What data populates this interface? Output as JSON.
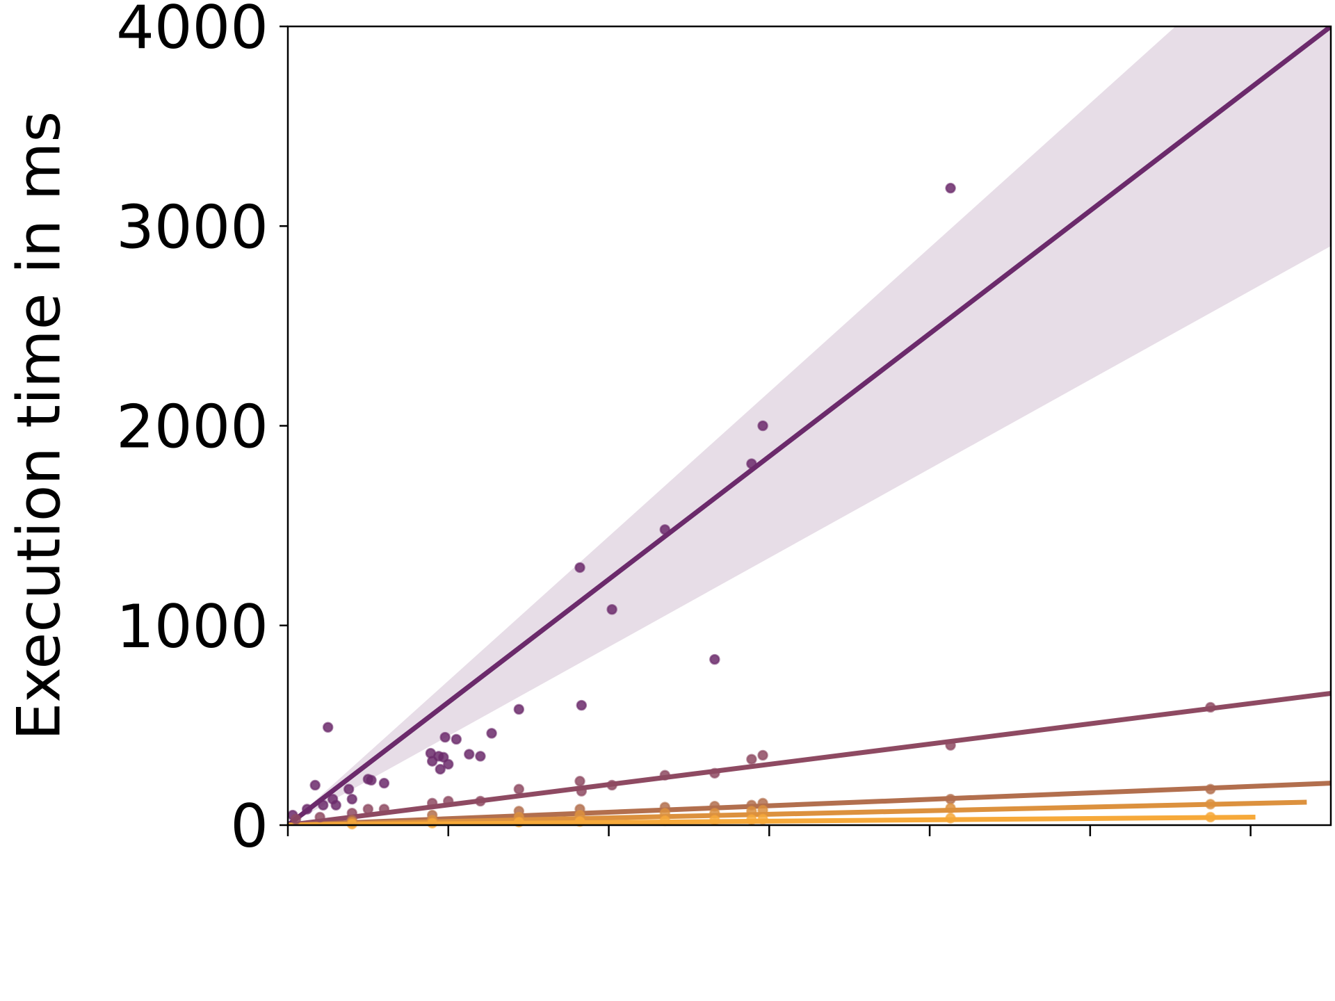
{
  "chart_data": {
    "type": "scatter",
    "title": "",
    "xlabel": "",
    "ylabel": "Execution time in ms",
    "ylim": [
      0,
      4000
    ],
    "xlim": [
      0,
      6.5
    ],
    "y_ticks": [
      {
        "value": 0,
        "label": "0"
      },
      {
        "value": 1000,
        "label": "1000"
      },
      {
        "value": 2000,
        "label": "2000"
      },
      {
        "value": 3000,
        "label": "3000"
      },
      {
        "value": 4000,
        "label": "4000"
      }
    ],
    "x_ticks": [
      0,
      1,
      2,
      3,
      4,
      5,
      6
    ],
    "grid": false,
    "legend": "none",
    "series": [
      {
        "color": "#6b2a6b",
        "fit": {
          "x": [
            0,
            6.5
          ],
          "y": [
            0,
            4000
          ]
        },
        "band": {
          "x": [
            0,
            6.5
          ],
          "lower": [
            0,
            2900
          ],
          "upper": [
            0,
            4700
          ]
        },
        "points": [
          [
            0.03,
            50
          ],
          [
            0.12,
            80
          ],
          [
            0.17,
            200
          ],
          [
            0.22,
            100
          ],
          [
            0.25,
            490
          ],
          [
            0.28,
            130
          ],
          [
            0.3,
            100
          ],
          [
            0.38,
            180
          ],
          [
            0.4,
            130
          ],
          [
            0.5,
            230
          ],
          [
            0.52,
            225
          ],
          [
            0.6,
            210
          ],
          [
            0.89,
            360
          ],
          [
            0.9,
            320
          ],
          [
            0.94,
            345
          ],
          [
            0.95,
            280
          ],
          [
            0.97,
            340
          ],
          [
            0.98,
            440
          ],
          [
            1.0,
            305
          ],
          [
            1.05,
            430
          ],
          [
            1.13,
            355
          ],
          [
            1.2,
            345
          ],
          [
            1.27,
            460
          ],
          [
            1.44,
            580
          ],
          [
            1.82,
            1290
          ],
          [
            1.83,
            600
          ],
          [
            2.02,
            1080
          ],
          [
            2.35,
            1480
          ],
          [
            2.66,
            830
          ],
          [
            2.89,
            1810
          ],
          [
            2.96,
            2000
          ],
          [
            4.13,
            3190
          ]
        ]
      },
      {
        "color": "#8e4a62",
        "fit": {
          "x": [
            0,
            6.5
          ],
          "y": [
            0,
            660
          ]
        },
        "points": [
          [
            0.05,
            30
          ],
          [
            0.2,
            40
          ],
          [
            0.4,
            60
          ],
          [
            0.5,
            80
          ],
          [
            0.6,
            80
          ],
          [
            0.9,
            110
          ],
          [
            1.0,
            120
          ],
          [
            1.2,
            120
          ],
          [
            1.44,
            180
          ],
          [
            1.82,
            220
          ],
          [
            1.83,
            170
          ],
          [
            2.02,
            200
          ],
          [
            2.35,
            250
          ],
          [
            2.66,
            260
          ],
          [
            2.89,
            330
          ],
          [
            2.96,
            350
          ],
          [
            4.13,
            400
          ],
          [
            5.75,
            590
          ]
        ]
      },
      {
        "color": "#b26f4e",
        "fit": {
          "x": [
            0,
            6.5
          ],
          "y": [
            0,
            210
          ]
        },
        "points": [
          [
            0.4,
            25
          ],
          [
            0.9,
            50
          ],
          [
            1.44,
            70
          ],
          [
            1.82,
            80
          ],
          [
            2.35,
            90
          ],
          [
            2.66,
            95
          ],
          [
            2.89,
            100
          ],
          [
            2.96,
            110
          ],
          [
            4.13,
            130
          ],
          [
            5.75,
            180
          ]
        ]
      },
      {
        "color": "#dc913e",
        "fit": {
          "x": [
            0,
            6.35
          ],
          "y": [
            0,
            115
          ]
        },
        "points": [
          [
            0.4,
            15
          ],
          [
            0.9,
            25
          ],
          [
            1.44,
            40
          ],
          [
            1.82,
            50
          ],
          [
            2.35,
            60
          ],
          [
            2.66,
            60
          ],
          [
            2.89,
            70
          ],
          [
            2.96,
            75
          ],
          [
            4.13,
            85
          ],
          [
            5.75,
            105
          ]
        ]
      },
      {
        "color": "#f6a93a",
        "fit": {
          "x": [
            0,
            6.03
          ],
          "y": [
            0,
            40
          ]
        },
        "points": [
          [
            0.4,
            5
          ],
          [
            0.9,
            10
          ],
          [
            1.44,
            15
          ],
          [
            1.82,
            18
          ],
          [
            2.35,
            22
          ],
          [
            2.66,
            25
          ],
          [
            2.89,
            28
          ],
          [
            2.96,
            30
          ],
          [
            4.13,
            35
          ],
          [
            5.75,
            40
          ]
        ]
      }
    ]
  }
}
